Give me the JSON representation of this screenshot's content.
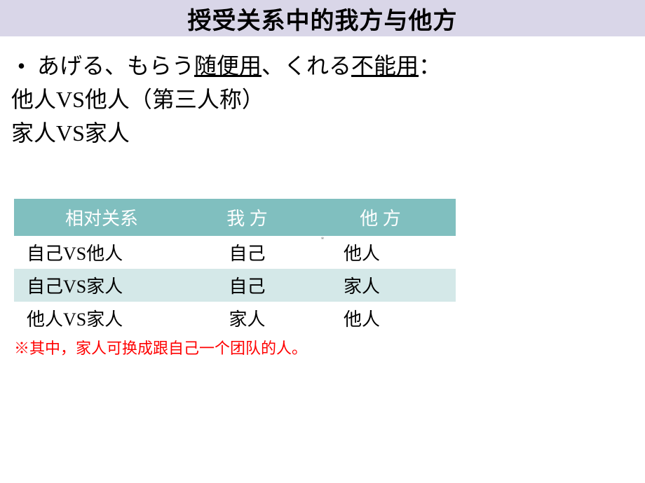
{
  "title": "授受关系中的我方与他方",
  "bullet": {
    "marker": "•",
    "part1": "あげる、もらう",
    "underline1": "随便用",
    "part2": "、くれる",
    "underline2": "不能用",
    "part3": "："
  },
  "sublines": [
    "他人VS他人（第三人称）",
    "家人VS家人"
  ],
  "table": {
    "headers": [
      "相对关系",
      "我  方",
      "他  方"
    ],
    "rows": [
      [
        "自己VS他人",
        "自己",
        "他人"
      ],
      [
        "自己VS家人",
        "自己",
        "家人"
      ],
      [
        "他人VS家人",
        "家人",
        "他人"
      ]
    ],
    "header_bg": "#80bfbf",
    "header_color": "#ffffff",
    "row_odd_bg": "#ffffff",
    "row_even_bg": "#d4e8e8"
  },
  "footnote": "※其中，家人可换成跟自己一个团队的人。",
  "page_marker": "*"
}
